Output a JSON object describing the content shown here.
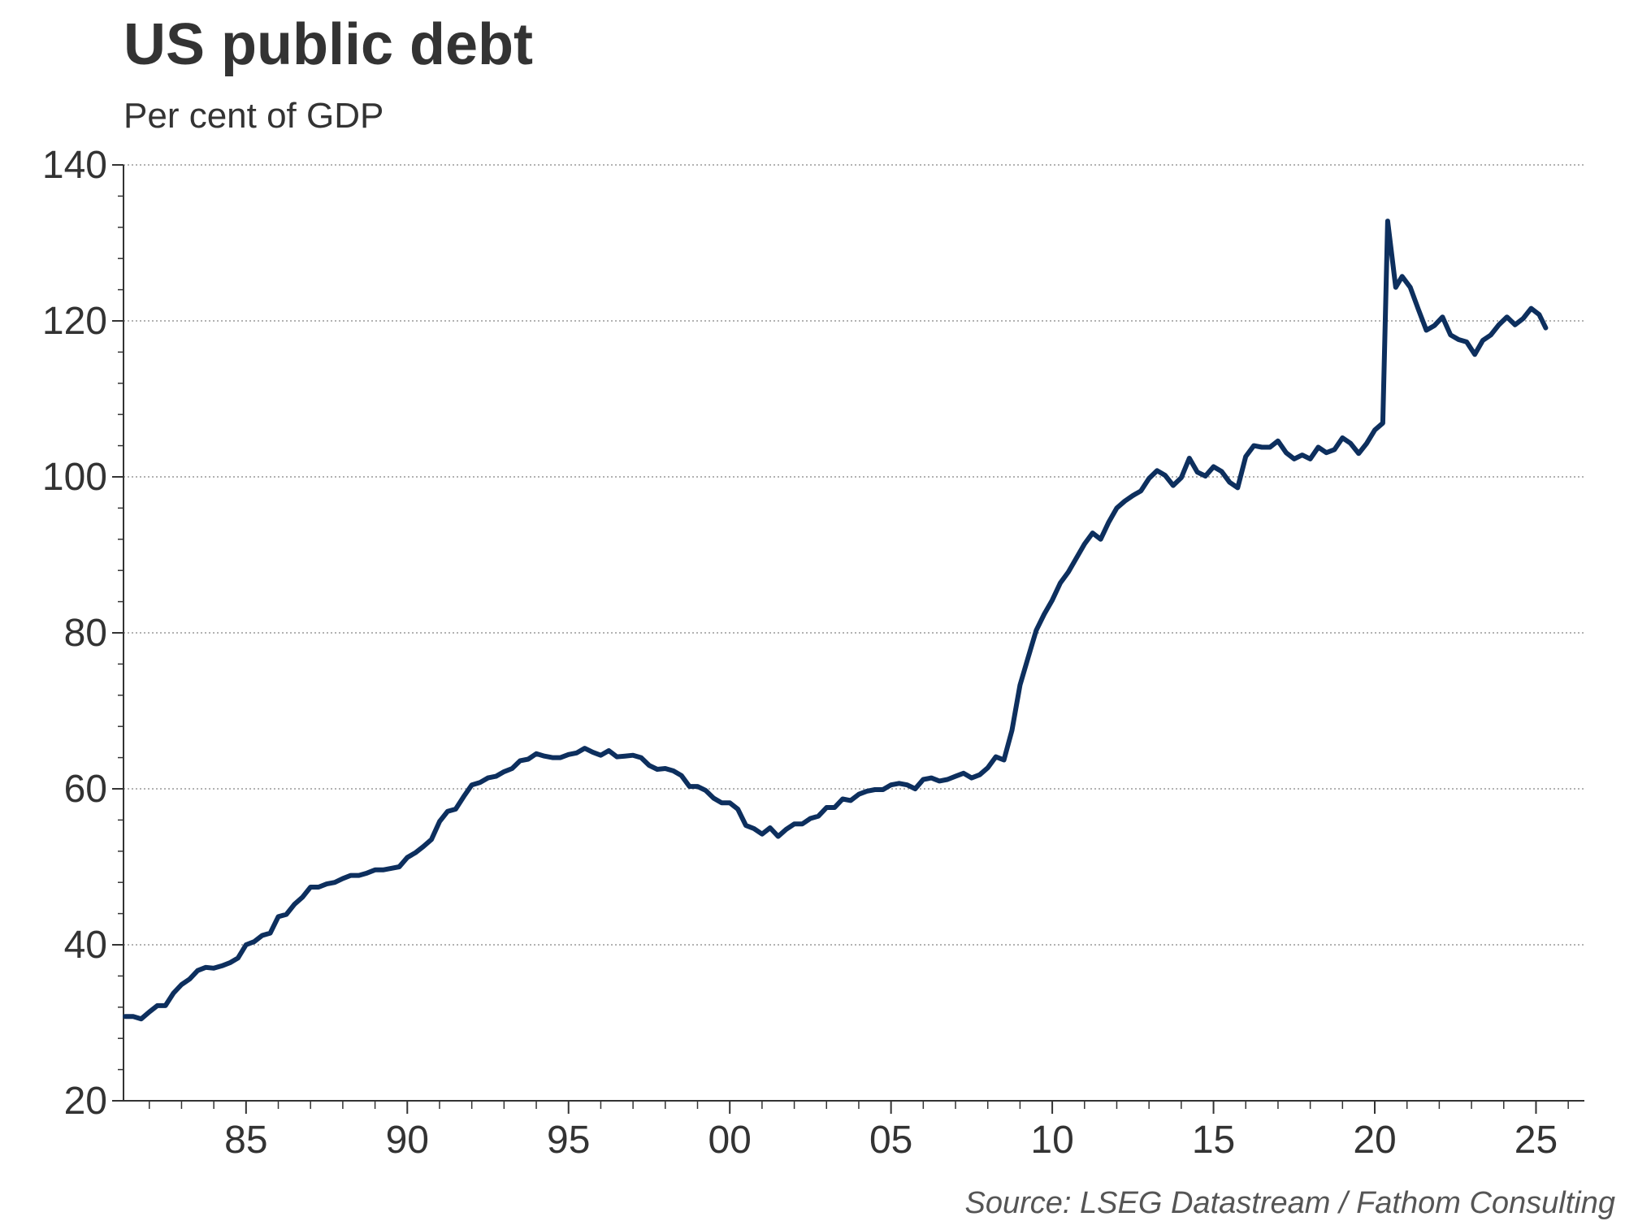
{
  "title": "US public debt",
  "subtitle": "Per cent of GDP",
  "source": "Source: LSEG Datastream / Fathom Consulting",
  "colors": {
    "line": "#0d2f5e",
    "grid": "#999999",
    "axis": "#333333"
  },
  "chart_data": {
    "type": "line",
    "title": "US public debt",
    "ylabel": "Per cent of GDP",
    "xlabel": "",
    "ylim": [
      20,
      140
    ],
    "xlim": [
      1981.2,
      2026.5
    ],
    "yticks": [
      20,
      40,
      60,
      80,
      100,
      120,
      140
    ],
    "xticks": [
      {
        "value": 1985,
        "label": "85"
      },
      {
        "value": 1990,
        "label": "90"
      },
      {
        "value": 1995,
        "label": "95"
      },
      {
        "value": 2000,
        "label": "00"
      },
      {
        "value": 2005,
        "label": "05"
      },
      {
        "value": 2010,
        "label": "10"
      },
      {
        "value": 2015,
        "label": "15"
      },
      {
        "value": 2020,
        "label": "20"
      },
      {
        "value": 2025,
        "label": "25"
      }
    ],
    "grid": "horizontal dotted",
    "series": [
      {
        "points": [
          [
            1981.25,
            30.8
          ],
          [
            1981.5,
            30.8
          ],
          [
            1981.75,
            30.5
          ],
          [
            1982.0,
            31.4
          ],
          [
            1982.25,
            32.2
          ],
          [
            1982.5,
            32.2
          ],
          [
            1982.75,
            33.8
          ],
          [
            1983.0,
            34.9
          ],
          [
            1983.25,
            35.6
          ],
          [
            1983.5,
            36.7
          ],
          [
            1983.75,
            37.1
          ],
          [
            1984.0,
            37.0
          ],
          [
            1984.25,
            37.3
          ],
          [
            1984.5,
            37.7
          ],
          [
            1984.75,
            38.3
          ],
          [
            1985.0,
            40.0
          ],
          [
            1985.25,
            40.4
          ],
          [
            1985.5,
            41.2
          ],
          [
            1985.75,
            41.5
          ],
          [
            1986.0,
            43.6
          ],
          [
            1986.25,
            43.9
          ],
          [
            1986.5,
            45.2
          ],
          [
            1986.75,
            46.1
          ],
          [
            1987.0,
            47.4
          ],
          [
            1987.25,
            47.4
          ],
          [
            1987.5,
            47.8
          ],
          [
            1987.75,
            48.0
          ],
          [
            1988.0,
            48.5
          ],
          [
            1988.25,
            48.9
          ],
          [
            1988.5,
            48.9
          ],
          [
            1988.75,
            49.2
          ],
          [
            1989.0,
            49.6
          ],
          [
            1989.25,
            49.6
          ],
          [
            1989.5,
            49.8
          ],
          [
            1989.75,
            50.0
          ],
          [
            1990.0,
            51.2
          ],
          [
            1990.25,
            51.8
          ],
          [
            1990.5,
            52.6
          ],
          [
            1990.75,
            53.5
          ],
          [
            1991.0,
            55.8
          ],
          [
            1991.25,
            57.1
          ],
          [
            1991.5,
            57.4
          ],
          [
            1991.75,
            59.0
          ],
          [
            1992.0,
            60.5
          ],
          [
            1992.25,
            60.8
          ],
          [
            1992.5,
            61.4
          ],
          [
            1992.75,
            61.6
          ],
          [
            1993.0,
            62.2
          ],
          [
            1993.25,
            62.6
          ],
          [
            1993.5,
            63.6
          ],
          [
            1993.75,
            63.8
          ],
          [
            1994.0,
            64.5
          ],
          [
            1994.25,
            64.2
          ],
          [
            1994.5,
            64.0
          ],
          [
            1994.75,
            64.0
          ],
          [
            1995.0,
            64.4
          ],
          [
            1995.25,
            64.6
          ],
          [
            1995.5,
            65.2
          ],
          [
            1995.75,
            64.7
          ],
          [
            1996.0,
            64.3
          ],
          [
            1996.25,
            64.9
          ],
          [
            1996.5,
            64.1
          ],
          [
            1996.75,
            64.2
          ],
          [
            1997.0,
            64.3
          ],
          [
            1997.25,
            64.0
          ],
          [
            1997.5,
            63.0
          ],
          [
            1997.75,
            62.5
          ],
          [
            1998.0,
            62.6
          ],
          [
            1998.25,
            62.3
          ],
          [
            1998.5,
            61.7
          ],
          [
            1998.75,
            60.3
          ],
          [
            1999.0,
            60.3
          ],
          [
            1999.25,
            59.8
          ],
          [
            1999.5,
            58.8
          ],
          [
            1999.75,
            58.2
          ],
          [
            2000.0,
            58.2
          ],
          [
            2000.25,
            57.4
          ],
          [
            2000.5,
            55.3
          ],
          [
            2000.75,
            54.9
          ],
          [
            2001.0,
            54.2
          ],
          [
            2001.25,
            55.0
          ],
          [
            2001.5,
            53.9
          ],
          [
            2001.75,
            54.8
          ],
          [
            2002.0,
            55.5
          ],
          [
            2002.25,
            55.5
          ],
          [
            2002.5,
            56.2
          ],
          [
            2002.75,
            56.5
          ],
          [
            2003.0,
            57.6
          ],
          [
            2003.25,
            57.6
          ],
          [
            2003.5,
            58.7
          ],
          [
            2003.75,
            58.5
          ],
          [
            2004.0,
            59.3
          ],
          [
            2004.25,
            59.7
          ],
          [
            2004.5,
            59.9
          ],
          [
            2004.75,
            59.9
          ],
          [
            2005.0,
            60.5
          ],
          [
            2005.25,
            60.7
          ],
          [
            2005.5,
            60.5
          ],
          [
            2005.75,
            60.0
          ],
          [
            2006.0,
            61.2
          ],
          [
            2006.25,
            61.4
          ],
          [
            2006.5,
            61.0
          ],
          [
            2006.75,
            61.2
          ],
          [
            2007.0,
            61.6
          ],
          [
            2007.25,
            62.0
          ],
          [
            2007.5,
            61.4
          ],
          [
            2007.75,
            61.8
          ],
          [
            2008.0,
            62.7
          ],
          [
            2008.25,
            64.1
          ],
          [
            2008.5,
            63.7
          ],
          [
            2008.75,
            67.5
          ],
          [
            2009.0,
            73.3
          ],
          [
            2009.25,
            76.8
          ],
          [
            2009.5,
            80.3
          ],
          [
            2009.75,
            82.4
          ],
          [
            2010.0,
            84.2
          ],
          [
            2010.25,
            86.4
          ],
          [
            2010.5,
            87.8
          ],
          [
            2010.75,
            89.6
          ],
          [
            2011.0,
            91.4
          ],
          [
            2011.25,
            92.8
          ],
          [
            2011.5,
            92.0
          ],
          [
            2011.75,
            94.2
          ],
          [
            2012.0,
            96.0
          ],
          [
            2012.25,
            96.9
          ],
          [
            2012.5,
            97.6
          ],
          [
            2012.75,
            98.2
          ],
          [
            2013.0,
            99.8
          ],
          [
            2013.25,
            100.8
          ],
          [
            2013.5,
            100.2
          ],
          [
            2013.75,
            98.9
          ],
          [
            2014.0,
            99.9
          ],
          [
            2014.25,
            102.4
          ],
          [
            2014.5,
            100.6
          ],
          [
            2014.75,
            100.1
          ],
          [
            2015.0,
            101.3
          ],
          [
            2015.25,
            100.7
          ],
          [
            2015.5,
            99.3
          ],
          [
            2015.75,
            98.6
          ],
          [
            2016.0,
            102.6
          ],
          [
            2016.25,
            104.0
          ],
          [
            2016.5,
            103.8
          ],
          [
            2016.75,
            103.8
          ],
          [
            2017.0,
            104.6
          ],
          [
            2017.25,
            103.1
          ],
          [
            2017.5,
            102.3
          ],
          [
            2017.75,
            102.8
          ],
          [
            2018.0,
            102.3
          ],
          [
            2018.25,
            103.8
          ],
          [
            2018.5,
            103.1
          ],
          [
            2018.75,
            103.5
          ],
          [
            2019.0,
            105.0
          ],
          [
            2019.25,
            104.3
          ],
          [
            2019.5,
            103.0
          ],
          [
            2019.75,
            104.3
          ],
          [
            2020.0,
            106.0
          ],
          [
            2020.25,
            106.9
          ],
          [
            2020.4,
            132.8
          ],
          [
            2020.65,
            124.3
          ],
          [
            2020.85,
            125.7
          ],
          [
            2021.1,
            124.3
          ],
          [
            2021.35,
            121.5
          ],
          [
            2021.6,
            118.8
          ],
          [
            2021.85,
            119.4
          ],
          [
            2022.1,
            120.5
          ],
          [
            2022.35,
            118.2
          ],
          [
            2022.6,
            117.6
          ],
          [
            2022.85,
            117.3
          ],
          [
            2023.1,
            115.7
          ],
          [
            2023.35,
            117.5
          ],
          [
            2023.6,
            118.2
          ],
          [
            2023.85,
            119.5
          ],
          [
            2024.1,
            120.5
          ],
          [
            2024.35,
            119.5
          ],
          [
            2024.6,
            120.3
          ],
          [
            2024.85,
            121.6
          ],
          [
            2025.1,
            120.8
          ],
          [
            2025.3,
            119.1
          ]
        ]
      }
    ]
  }
}
